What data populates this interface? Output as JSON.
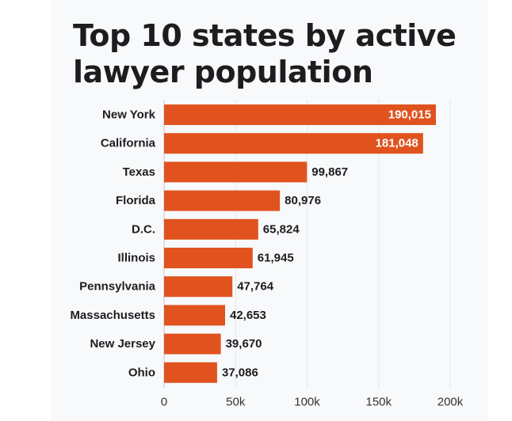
{
  "chart_data": {
    "type": "bar",
    "orientation": "horizontal",
    "title": "Top 10 states by active lawyer population",
    "categories": [
      "New York",
      "California",
      "Texas",
      "Florida",
      "D.C.",
      "Illinois",
      "Pennsylvania",
      "Massachusetts",
      "New Jersey",
      "Ohio"
    ],
    "values": [
      190015,
      181048,
      99867,
      80976,
      65824,
      61945,
      47764,
      42653,
      39670,
      37086
    ],
    "value_labels": [
      "190,015",
      "181,048",
      "99,867",
      "80,976",
      "65,824",
      "61,945",
      "47,764",
      "42,653",
      "39,670",
      "37,086"
    ],
    "xlim": [
      0,
      200000
    ],
    "xticks": [
      0,
      50000,
      100000,
      150000,
      200000
    ],
    "xtick_labels": [
      "0",
      "50k",
      "100k",
      "150k",
      "200k"
    ],
    "grid": true,
    "legend": "none",
    "bar_color": "#e0531f",
    "inside_label_color": "#ffffff",
    "outside_label_color": "#1d1d1f",
    "background_color": "#f7f9fb"
  }
}
